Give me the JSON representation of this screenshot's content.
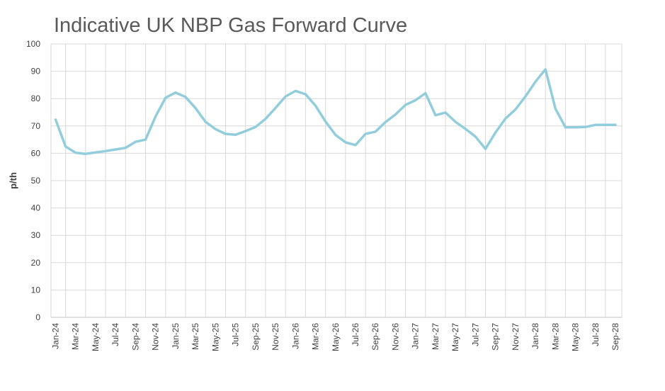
{
  "chart_data": {
    "type": "line",
    "title": "Indicative UK NBP Gas Forward Curve",
    "xlabel": "",
    "ylabel": "p/th",
    "ylim": [
      0,
      100
    ],
    "yticks": [
      0,
      10,
      20,
      30,
      40,
      50,
      60,
      70,
      80,
      90,
      100
    ],
    "grid": true,
    "legend": "none",
    "line_color": "#92CDDC",
    "x_tick_labels": [
      "Jan-24",
      "Mar-24",
      "May-24",
      "Jul-24",
      "Sep-24",
      "Nov-24",
      "Jan-25",
      "Mar-25",
      "May-25",
      "Jul-25",
      "Sep-25",
      "Nov-25",
      "Jan-26",
      "Mar-26",
      "May-26",
      "Jul-26",
      "Sep-26",
      "Nov-26",
      "Jan-27",
      "Mar-27",
      "May-27",
      "Jul-27",
      "Sep-27",
      "Nov-27",
      "Jan-28",
      "Mar-28",
      "May-28",
      "Jul-28",
      "Sep-28"
    ],
    "x": [
      "Jan-24",
      "Feb-24",
      "Mar-24",
      "Apr-24",
      "May-24",
      "Jun-24",
      "Jul-24",
      "Aug-24",
      "Sep-24",
      "Oct-24",
      "Nov-24",
      "Dec-24",
      "Jan-25",
      "Feb-25",
      "Mar-25",
      "Apr-25",
      "May-25",
      "Jun-25",
      "Jul-25",
      "Aug-25",
      "Sep-25",
      "Oct-25",
      "Nov-25",
      "Dec-25",
      "Jan-26",
      "Feb-26",
      "Mar-26",
      "Apr-26",
      "May-26",
      "Jun-26",
      "Jul-26",
      "Aug-26",
      "Sep-26",
      "Oct-26",
      "Nov-26",
      "Dec-26",
      "Jan-27",
      "Feb-27",
      "Mar-27",
      "Apr-27",
      "May-27",
      "Jun-27",
      "Jul-27",
      "Aug-27",
      "Sep-27",
      "Oct-27",
      "Nov-27",
      "Dec-27",
      "Jan-28",
      "Feb-28",
      "Mar-28",
      "Apr-28",
      "May-28",
      "Jun-28",
      "Jul-28",
      "Aug-28",
      "Sep-28"
    ],
    "series": [
      {
        "values": [
          72.3,
          62.5,
          60.2,
          59.8,
          60.3,
          60.8,
          61.4,
          62.0,
          64.2,
          65.0,
          73.5,
          80.3,
          82.2,
          80.6,
          76.5,
          71.5,
          68.8,
          67.1,
          66.8,
          68.1,
          69.6,
          72.6,
          76.6,
          80.8,
          82.8,
          81.6,
          77.4,
          71.6,
          66.7,
          64.0,
          63.0,
          67.1,
          67.9,
          71.4,
          74.2,
          77.7,
          79.4,
          82.0,
          73.9,
          74.9,
          71.5,
          68.9,
          66.1,
          61.6,
          67.6,
          72.7,
          76.0,
          80.8,
          86.2,
          90.7,
          76.3,
          69.5,
          69.5,
          69.6,
          70.4,
          70.4,
          70.4
        ]
      }
    ]
  }
}
